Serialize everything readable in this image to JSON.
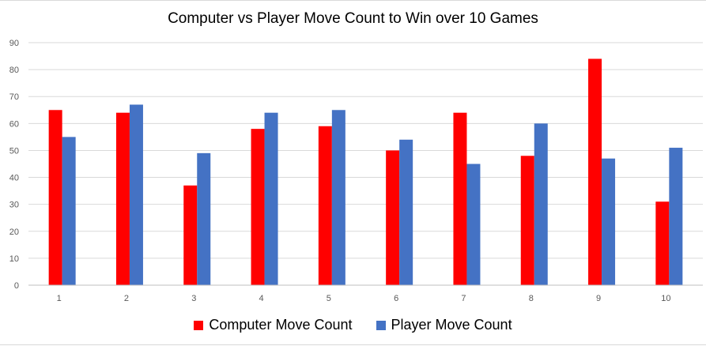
{
  "chart_data": {
    "type": "bar",
    "title": "Computer vs Player Move Count to Win over 10 Games",
    "xlabel": "",
    "ylabel": "",
    "categories": [
      "1",
      "2",
      "3",
      "4",
      "5",
      "6",
      "7",
      "8",
      "9",
      "10"
    ],
    "series": [
      {
        "name": "Computer Move Count",
        "color": "#ff0000",
        "values": [
          65,
          64,
          37,
          58,
          59,
          50,
          64,
          48,
          84,
          31
        ]
      },
      {
        "name": "Player Move Count",
        "color": "#4472c4",
        "values": [
          55,
          67,
          49,
          64,
          65,
          54,
          45,
          60,
          47,
          51
        ]
      }
    ],
    "ylim": [
      0,
      90
    ],
    "yticks": [
      0,
      10,
      20,
      30,
      40,
      50,
      60,
      70,
      80,
      90
    ],
    "grid": true,
    "legend_position": "bottom"
  }
}
